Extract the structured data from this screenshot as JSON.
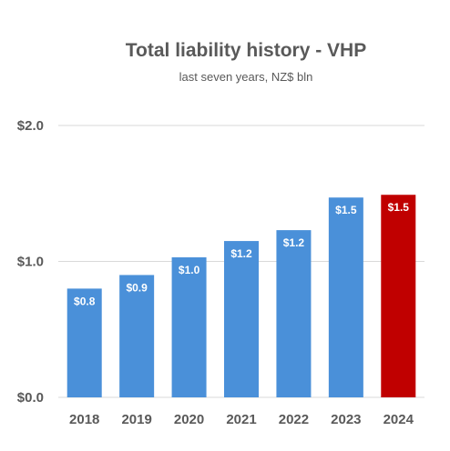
{
  "chart_data": {
    "type": "bar",
    "title": "Total liability history - VHP",
    "subtitle": "last seven years, NZ$ bln",
    "xlabel": "",
    "ylabel": "",
    "categories": [
      "2018",
      "2019",
      "2020",
      "2021",
      "2022",
      "2023",
      "2024"
    ],
    "values": [
      0.8,
      0.9,
      1.03,
      1.15,
      1.23,
      1.47,
      1.49
    ],
    "data_labels": [
      "$0.8",
      "$0.9",
      "$1.0",
      "$1.2",
      "$1.2",
      "$1.5",
      "$1.5"
    ],
    "ylim": [
      0,
      2.0
    ],
    "y_ticks": [
      {
        "value": 0,
        "label": "$0.0"
      },
      {
        "value": 1,
        "label": "$1.0"
      },
      {
        "value": 2,
        "label": "$2.0"
      }
    ],
    "grid": true,
    "legend": "none",
    "colors": {
      "bar": "#4a90d9",
      "highlight": "#c00000",
      "grid": "#d9d9d9",
      "text": "#595959"
    },
    "highlight_index": 6
  }
}
